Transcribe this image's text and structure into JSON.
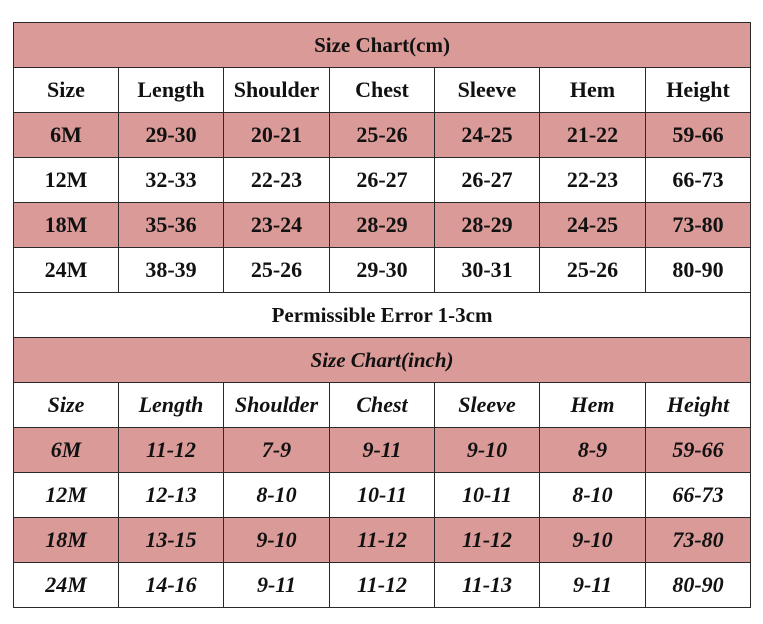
{
  "cm_section": {
    "title": "Size Chart(cm)",
    "headers": [
      "Size",
      "Length",
      "Shoulder",
      "Chest",
      "Sleeve",
      "Hem",
      "Height"
    ],
    "rows": [
      [
        "6M",
        "29-30",
        "20-21",
        "25-26",
        "24-25",
        "21-22",
        "59-66"
      ],
      [
        "12M",
        "32-33",
        "22-23",
        "26-27",
        "26-27",
        "22-23",
        "66-73"
      ],
      [
        "18M",
        "35-36",
        "23-24",
        "28-29",
        "28-29",
        "24-25",
        "73-80"
      ],
      [
        "24M",
        "38-39",
        "25-26",
        "29-30",
        "30-31",
        "25-26",
        "80-90"
      ]
    ]
  },
  "note": "Permissible Error 1-3cm",
  "inch_section": {
    "title": "Size Chart(inch)",
    "headers": [
      "Size",
      "Length",
      "Shoulder",
      "Chest",
      "Sleeve",
      "Hem",
      "Height"
    ],
    "rows": [
      [
        "6M",
        "11-12",
        "7-9",
        "9-11",
        "9-10",
        "8-9",
        "59-66"
      ],
      [
        "12M",
        "12-13",
        "8-10",
        "10-11",
        "10-11",
        "8-10",
        "66-73"
      ],
      [
        "18M",
        "13-15",
        "9-10",
        "11-12",
        "11-12",
        "9-10",
        "73-80"
      ],
      [
        "24M",
        "14-16",
        "9-11",
        "11-12",
        "11-13",
        "9-11",
        "80-90"
      ]
    ]
  },
  "colors": {
    "row_highlight": "#d99a98",
    "border": "#2a2a2a",
    "text": "#111111"
  }
}
